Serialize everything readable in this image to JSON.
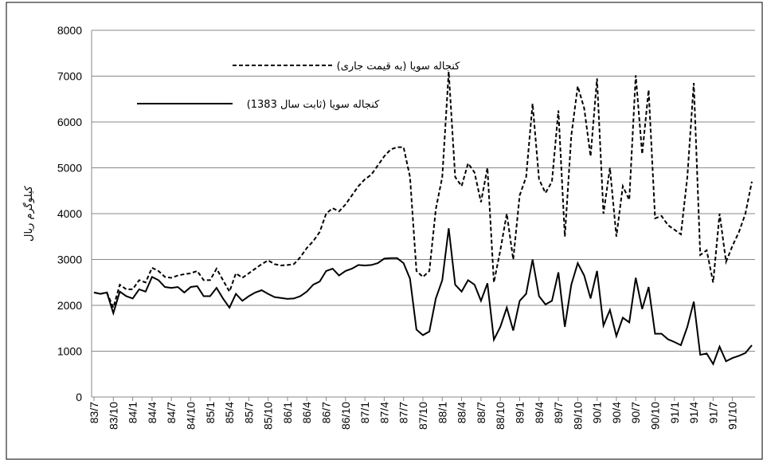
{
  "chart_data": {
    "type": "line",
    "y_label": "کیلوگرم ریال",
    "categories": [
      "83/7",
      null,
      null,
      "83/10",
      null,
      null,
      "84/1",
      null,
      null,
      "84/4",
      null,
      null,
      "84/7",
      null,
      null,
      "84/10",
      null,
      null,
      "85/1",
      null,
      null,
      "85/4",
      null,
      null,
      "85/7",
      null,
      null,
      "85/10",
      null,
      null,
      "86/1",
      null,
      null,
      "86/4",
      null,
      null,
      "86/7",
      null,
      null,
      "86/10",
      null,
      null,
      "87/1",
      null,
      null,
      "87/4",
      null,
      null,
      "87/7",
      null,
      null,
      "87/10",
      null,
      null,
      "88/1",
      null,
      null,
      "88/4",
      null,
      null,
      "88/7",
      null,
      null,
      "88/10",
      null,
      null,
      "89/1",
      null,
      null,
      "89/4",
      null,
      null,
      "89/7",
      null,
      null,
      "89/10",
      null,
      null,
      "90/1",
      null,
      null,
      "90/4",
      null,
      null,
      "90/7",
      null,
      null,
      "90/10",
      null,
      null,
      "91/1",
      null,
      null,
      "91/4",
      null,
      null,
      "91/7",
      null,
      null,
      "91/10",
      null,
      null,
      null
    ],
    "series": [
      {
        "name": "کنجاله سویا (به قیمت جاری)",
        "color": "#000000",
        "dash": true,
        "values": [
          2280,
          2250,
          2280,
          1950,
          2450,
          2350,
          2350,
          2550,
          2500,
          2820,
          2750,
          2620,
          2600,
          2650,
          2680,
          2700,
          2750,
          2550,
          2550,
          2800,
          2550,
          2300,
          2700,
          2600,
          2700,
          2800,
          2900,
          2980,
          2900,
          2870,
          2880,
          2900,
          3050,
          3250,
          3400,
          3600,
          4000,
          4120,
          4050,
          4200,
          4400,
          4600,
          4750,
          4850,
          5050,
          5250,
          5400,
          5450,
          5450,
          4800,
          2750,
          2620,
          2750,
          4100,
          4800,
          7100,
          4800,
          4600,
          5100,
          4900,
          4250,
          5000,
          2500,
          3200,
          4000,
          3000,
          4400,
          4800,
          6400,
          4750,
          4450,
          4700,
          6250,
          3500,
          5700,
          6780,
          6300,
          5250,
          6950,
          4000,
          5000,
          3500,
          4600,
          4300,
          7020,
          5300,
          6700,
          3900,
          3950,
          3750,
          3650,
          3550,
          4800,
          6850,
          3100,
          3200,
          2500,
          4000,
          2950,
          3300,
          3600,
          4000,
          4700
        ]
      },
      {
        "name": "کنجاله سویا (ثابت سال 1383)",
        "color": "#000000",
        "dash": false,
        "values": [
          2280,
          2250,
          2280,
          1830,
          2300,
          2200,
          2150,
          2350,
          2300,
          2620,
          2550,
          2400,
          2380,
          2400,
          2280,
          2400,
          2420,
          2200,
          2200,
          2380,
          2150,
          1950,
          2250,
          2100,
          2200,
          2280,
          2330,
          2250,
          2180,
          2160,
          2140,
          2150,
          2200,
          2300,
          2450,
          2520,
          2750,
          2800,
          2650,
          2750,
          2800,
          2880,
          2870,
          2880,
          2920,
          3020,
          3030,
          3030,
          2920,
          2580,
          1470,
          1350,
          1430,
          2150,
          2550,
          3680,
          2450,
          2300,
          2550,
          2450,
          2100,
          2480,
          1250,
          1530,
          1950,
          1450,
          2100,
          2250,
          3000,
          2200,
          2020,
          2100,
          2720,
          1530,
          2450,
          2920,
          2650,
          2150,
          2750,
          1560,
          1900,
          1330,
          1730,
          1630,
          2600,
          1920,
          2400,
          1380,
          1380,
          1260,
          1200,
          1130,
          1530,
          2080,
          920,
          950,
          720,
          1100,
          780,
          850,
          900,
          960,
          1130
        ]
      }
    ],
    "ylim": [
      0,
      8000
    ],
    "yticks": [
      0,
      1000,
      2000,
      3000,
      4000,
      5000,
      6000,
      7000,
      8000
    ],
    "grid": true
  }
}
